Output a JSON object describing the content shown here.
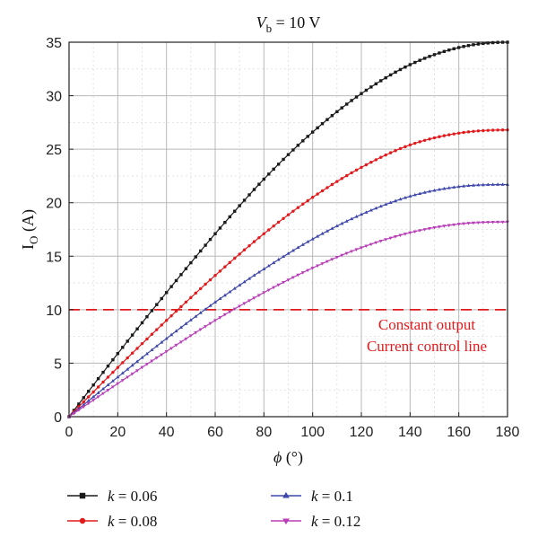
{
  "chart_data": {
    "type": "line",
    "title_var": "V",
    "title_sub": "b",
    "title_rest": " = 10 V",
    "xlabel_var": "ϕ",
    "xlabel_unit": " (°)",
    "ylabel_main": "I",
    "ylabel_sub": "O",
    "ylabel_unit": " (A)",
    "xlim": [
      0,
      180
    ],
    "ylim": [
      0,
      35
    ],
    "x_ticks": [
      0,
      20,
      40,
      60,
      80,
      100,
      120,
      140,
      160,
      180
    ],
    "y_ticks": [
      0,
      5,
      10,
      15,
      20,
      25,
      30,
      35
    ],
    "grid": true,
    "x": [
      0,
      20,
      40,
      60,
      80,
      100,
      120,
      140,
      160,
      180
    ],
    "series": [
      {
        "name": "k = 0.06",
        "var": "k",
        "eq": " = 0.06",
        "color": "#1a1a1a",
        "marker": "square",
        "values": [
          0,
          5.9,
          11.6,
          17.1,
          22.2,
          26.6,
          30.2,
          32.9,
          34.5,
          35.0
        ]
      },
      {
        "name": "k = 0.08",
        "var": "k",
        "eq": " = 0.08",
        "color": "#e31a1c",
        "marker": "circle",
        "values": [
          0,
          4.6,
          9.0,
          13.2,
          17.1,
          20.5,
          23.3,
          25.4,
          26.5,
          26.8
        ]
      },
      {
        "name": "k = 0.1",
        "var": "k",
        "eq": " = 0.1",
        "color": "#3f48aa",
        "marker": "triangle-up",
        "values": [
          0,
          3.7,
          7.3,
          10.7,
          13.8,
          16.6,
          18.9,
          20.6,
          21.5,
          21.7
        ]
      },
      {
        "name": "k = 0.12",
        "var": "k",
        "eq": " = 0.12",
        "color": "#b83fb8",
        "marker": "triangle-down",
        "values": [
          0,
          3.1,
          6.1,
          9.0,
          11.6,
          13.9,
          15.8,
          17.2,
          18.0,
          18.2
        ]
      }
    ],
    "reference_line": {
      "y": 10,
      "color": "#e31a1c",
      "style": "dashed"
    },
    "annotation": [
      "Constant output",
      "Current control line"
    ],
    "legend_position": "bottom"
  }
}
